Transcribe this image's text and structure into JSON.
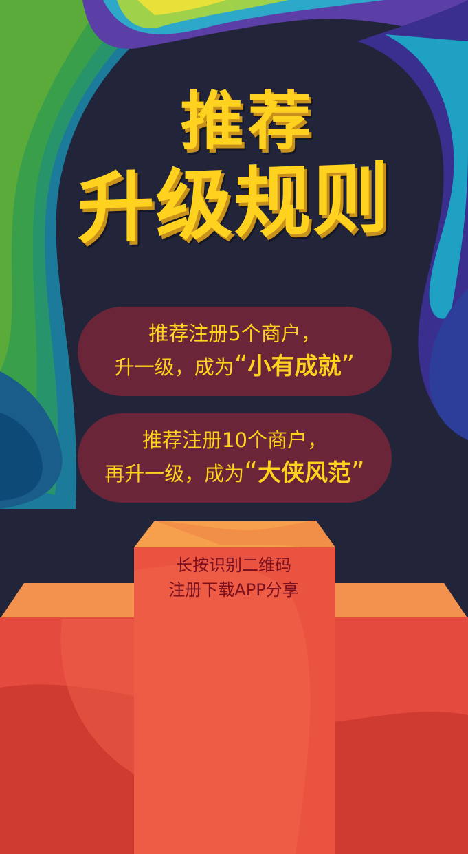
{
  "title": {
    "line1": "推荐",
    "line2": "升级规则"
  },
  "rule1": {
    "line1": "推荐注册5个商户，",
    "line2_prefix": "升一级，成为",
    "quote_open": "“",
    "level": "小有成就",
    "quote_close": "”"
  },
  "rule2": {
    "line1": "推荐注册10个商户，",
    "line2_prefix": "再升一级，成为",
    "quote_open": "“",
    "level": "大侠风范",
    "quote_close": "”"
  },
  "podium": {
    "line1": "长按识别二维码",
    "line2": "注册下载APP分享"
  },
  "colors": {
    "background": "#22243a",
    "title": "#ffd21f",
    "pill": "#6a2638",
    "podium": "#e8503d"
  }
}
